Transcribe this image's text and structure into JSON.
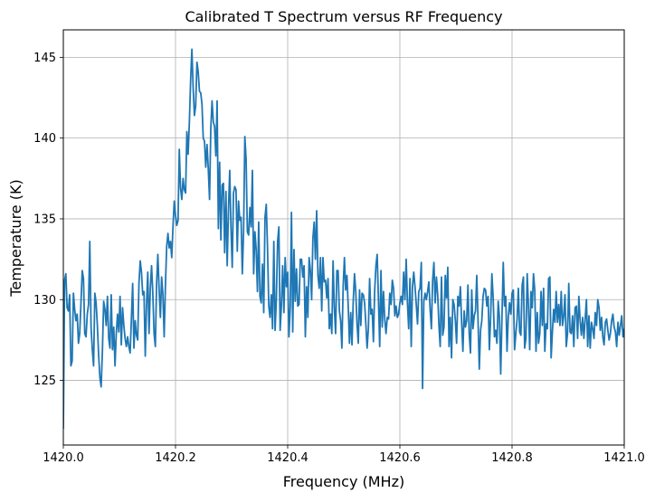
{
  "chart_data": {
    "type": "line",
    "title": "Calibrated T Spectrum versus RF Frequency",
    "xlabel": "Frequency (MHz)",
    "ylabel": "Temperature (K)",
    "xlim": [
      1420.0,
      1421.0
    ],
    "ylim": [
      121.0,
      146.7
    ],
    "xticks": [
      1420.0,
      1420.2,
      1420.4,
      1420.6,
      1420.8,
      1421.0
    ],
    "xtick_labels": [
      "1420.0",
      "1420.2",
      "1420.4",
      "1420.6",
      "1420.8",
      "1421.0"
    ],
    "yticks": [
      125,
      130,
      135,
      140,
      145
    ],
    "ytick_labels": [
      "125",
      "130",
      "135",
      "140",
      "145"
    ],
    "grid": true,
    "line_color": "#1f77b4",
    "series": [
      {
        "x_start": 1420.0,
        "x_end": 1421.0,
        "values": [
          122.0,
          131.2,
          131.6,
          129.5,
          129.3,
          130.3,
          125.9,
          126.2,
          130.4,
          129.4,
          128.7,
          129.1,
          127.3,
          127.9,
          129.8,
          131.8,
          131.3,
          127.9,
          127.7,
          129.1,
          129.7,
          133.6,
          128.3,
          126.9,
          125.9,
          130.4,
          129.8,
          128.4,
          126.6,
          125.2,
          124.6,
          126.8,
          129.9,
          129.4,
          128.4,
          130.2,
          127.6,
          127.0,
          130.3,
          126.9,
          128.3,
          125.9,
          127.9,
          129.1,
          128.0,
          130.2,
          127.2,
          129.5,
          128.4,
          127.6,
          127.1,
          127.7,
          127.1,
          126.7,
          128.8,
          131.0,
          127.0,
          128.7,
          127.8,
          127.5,
          131.0,
          132.4,
          131.7,
          130.3,
          130.5,
          126.5,
          129.7,
          131.7,
          127.9,
          130.7,
          132.1,
          130.4,
          127.9,
          127.1,
          131.0,
          132.8,
          130.6,
          128.9,
          131.4,
          130.3,
          127.7,
          130.9,
          133.3,
          134.1,
          133.2,
          133.6,
          132.6,
          134.5,
          136.1,
          135.2,
          134.6,
          134.9,
          139.3,
          136.9,
          136.2,
          137.5,
          136.8,
          136.6,
          140.4,
          139.0,
          141.0,
          143.6,
          145.5,
          143.1,
          141.4,
          142.0,
          144.7,
          144.1,
          142.9,
          142.8,
          142.1,
          140.0,
          139.8,
          138.2,
          139.6,
          138.1,
          136.2,
          140.6,
          142.3,
          141.0,
          140.7,
          138.9,
          142.3,
          134.4,
          138.5,
          133.7,
          137.1,
          137.2,
          132.9,
          136.7,
          132.1,
          135.5,
          138.0,
          134.5,
          132.0,
          136.6,
          137.0,
          136.8,
          133.0,
          136.1,
          134.9,
          135.1,
          131.6,
          134.2,
          140.1,
          138.7,
          134.2,
          134.0,
          135.7,
          134.5,
          138.0,
          131.6,
          134.2,
          133.1,
          130.5,
          134.8,
          130.2,
          129.8,
          132.2,
          129.2,
          135.1,
          135.9,
          133.2,
          129.6,
          128.9,
          130.3,
          128.2,
          133.6,
          128.1,
          130.0,
          133.6,
          134.5,
          128.1,
          129.6,
          132.1,
          129.2,
          132.6,
          130.8,
          131.7,
          127.7,
          129.5,
          135.4,
          128.0,
          133.1,
          129.9,
          131.9,
          129.6,
          129.7,
          132.5,
          132.5,
          131.4,
          132.1,
          127.7,
          130.8,
          128.9,
          132.6,
          131.8,
          130.0,
          133.8,
          134.8,
          132.5,
          135.5,
          131.5,
          130.7,
          132.6,
          129.3,
          132.6,
          131.1,
          131.2,
          130.1,
          131.3,
          128.2,
          129.1,
          127.9,
          132.4,
          129.5,
          127.9,
          131.8,
          131.8,
          129.3,
          128.7,
          127.0,
          130.8,
          132.6,
          130.6,
          131.5,
          129.6,
          127.3,
          129.2,
          127.2,
          129.9,
          131.6,
          130.5,
          128.5,
          127.3,
          130.6,
          128.4,
          130.4,
          130.3,
          129.8,
          128.5,
          127.0,
          128.2,
          131.3,
          129.1,
          129.4,
          127.4,
          130.5,
          132.1,
          132.8,
          130.0,
          127.1,
          131.8,
          128.3,
          130.5,
          128.8,
          127.9,
          128.9,
          128.8,
          130.4,
          129.7,
          131.2,
          130.7,
          129.0,
          129.6,
          128.9,
          129.1,
          129.8,
          130.2,
          129.7,
          131.7,
          130.0,
          132.5,
          129.8,
          128.2,
          131.3,
          127.1,
          130.8,
          131.7,
          130.8,
          129.7,
          128.5,
          130.5,
          130.7,
          132.3,
          124.5,
          129.9,
          130.4,
          130.0,
          130.5,
          131.1,
          129.4,
          128.2,
          131.2,
          132.3,
          129.8,
          131.4,
          130.3,
          128.4,
          127.1,
          131.4,
          127.8,
          128.3,
          131.5,
          130.1,
          132.0,
          127.1,
          128.9,
          126.4,
          130.0,
          129.7,
          128.7,
          127.3,
          130.2,
          129.6,
          130.8,
          128.6,
          126.8,
          129.3,
          128.3,
          128.7,
          130.9,
          127.9,
          126.7,
          130.6,
          128.2,
          129.0,
          129.3,
          131.5,
          128.8,
          125.7,
          128.1,
          128.7,
          130.2,
          130.7,
          130.6,
          129.6,
          130.2,
          126.9,
          128.9,
          131.6,
          130.1,
          127.7,
          128.1,
          127.3,
          129.9,
          128.9,
          125.4,
          128.9,
          132.3,
          129.6,
          130.2,
          126.8,
          128.9,
          129.8,
          129.1,
          130.4,
          130.6,
          126.9,
          127.9,
          128.8,
          130.7,
          128.0,
          127.8,
          130.9,
          131.4,
          127.0,
          127.6,
          131.6,
          129.6,
          126.9,
          130.5,
          129.5,
          131.6,
          130.6,
          126.8,
          129.2,
          127.3,
          127.9,
          130.5,
          128.4,
          130.7,
          126.8,
          128.5,
          128.2,
          131.3,
          131.4,
          126.4,
          128.0,
          129.4,
          128.6,
          130.5,
          128.6,
          129.7,
          128.4,
          130.5,
          128.4,
          129.0,
          130.3,
          127.1,
          127.9,
          131.0,
          128.0,
          127.9,
          129.0,
          127.1,
          129.5,
          129.6,
          127.6,
          130.2,
          128.7,
          127.8,
          128.9,
          127.6,
          128.8,
          130.0,
          127.1,
          129.0,
          127.0,
          128.6,
          128.2,
          127.6,
          129.2,
          128.4,
          130.0,
          129.5,
          128.1,
          128.9,
          127.7,
          127.2,
          128.6,
          128.8,
          128.1,
          127.5,
          127.9,
          128.7,
          129.1,
          128.3,
          128.0,
          127.1,
          128.6,
          127.8,
          128.4,
          129.0,
          127.7,
          128.2
        ]
      }
    ]
  }
}
